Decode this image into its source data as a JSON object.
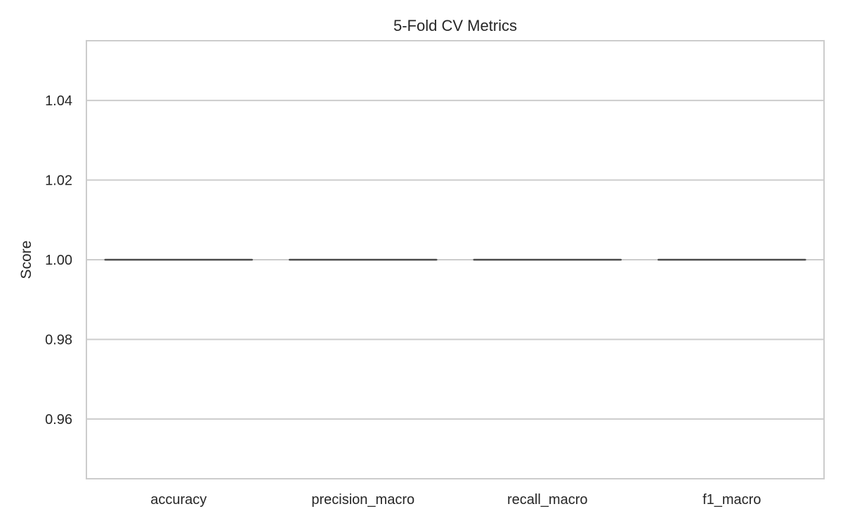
{
  "chart_data": {
    "type": "box",
    "title": "5-Fold CV Metrics",
    "xlabel": "",
    "ylabel": "Score",
    "categories": [
      "accuracy",
      "precision_macro",
      "recall_macro",
      "f1_macro"
    ],
    "boxes": [
      {
        "category": "accuracy",
        "min": 1.0,
        "q1": 1.0,
        "median": 1.0,
        "q3": 1.0,
        "max": 1.0
      },
      {
        "category": "precision_macro",
        "min": 1.0,
        "q1": 1.0,
        "median": 1.0,
        "q3": 1.0,
        "max": 1.0
      },
      {
        "category": "recall_macro",
        "min": 1.0,
        "q1": 1.0,
        "median": 1.0,
        "q3": 1.0,
        "max": 1.0
      },
      {
        "category": "f1_macro",
        "min": 1.0,
        "q1": 1.0,
        "median": 1.0,
        "q3": 1.0,
        "max": 1.0
      }
    ],
    "ylim": [
      0.945,
      1.055
    ],
    "yticks": [
      0.96,
      0.98,
      1.0,
      1.02,
      1.04
    ],
    "ytick_labels": [
      "0.96",
      "0.98",
      "1.00",
      "1.02",
      "1.04"
    ],
    "grid": true,
    "colors": {
      "grid": "#cccccc",
      "spine": "#cccccc",
      "median": "#4a4a4a",
      "text": "#262626"
    }
  }
}
